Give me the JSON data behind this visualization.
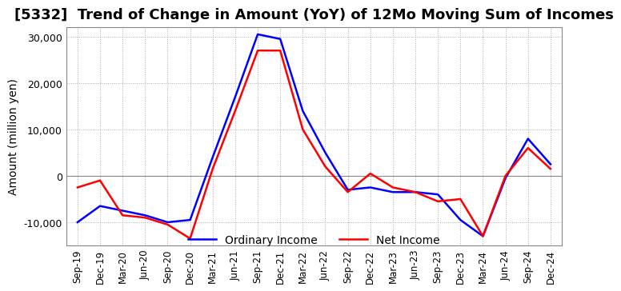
{
  "title": "[5332]  Trend of Change in Amount (YoY) of 12Mo Moving Sum of Incomes",
  "ylabel": "Amount (million yen)",
  "x_labels": [
    "Sep-19",
    "Dec-19",
    "Mar-20",
    "Jun-20",
    "Sep-20",
    "Dec-20",
    "Mar-21",
    "Jun-21",
    "Sep-21",
    "Dec-21",
    "Mar-22",
    "Jun-22",
    "Sep-22",
    "Dec-22",
    "Mar-23",
    "Jun-23",
    "Sep-23",
    "Dec-23",
    "Mar-24",
    "Jun-24",
    "Sep-24",
    "Dec-24"
  ],
  "ordinary_income": [
    -10000,
    -6500,
    -7500,
    -8500,
    -10000,
    -9500,
    4000,
    17000,
    30500,
    29500,
    14000,
    5000,
    -3000,
    -2500,
    -3500,
    -3500,
    -4000,
    -9500,
    -13000,
    -500,
    8000,
    2500
  ],
  "net_income": [
    -2500,
    -1000,
    -8500,
    -9000,
    -10500,
    -13500,
    1500,
    14000,
    27000,
    27000,
    10000,
    2000,
    -3500,
    500,
    -2500,
    -3500,
    -5500,
    -5000,
    -13000,
    0,
    6000,
    1500
  ],
  "ordinary_income_color": "#0000ff",
  "net_income_color": "#ff0000",
  "ylim": [
    -15000,
    32000
  ],
  "yticks": [
    -10000,
    0,
    10000,
    20000,
    30000
  ],
  "background_color": "#ffffff",
  "grid_color": "#aaaaaa",
  "title_fontsize": 13,
  "axis_fontsize": 10,
  "legend_fontsize": 10
}
